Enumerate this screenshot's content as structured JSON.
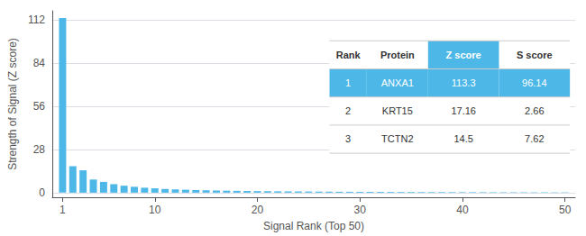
{
  "chart_data": {
    "type": "bar",
    "xlabel": "Signal Rank (Top 50)",
    "ylabel": "Strength of Signal (Z score)",
    "x": [
      1,
      2,
      3,
      4,
      5,
      6,
      7,
      8,
      9,
      10,
      11,
      12,
      13,
      14,
      15,
      16,
      17,
      18,
      19,
      20,
      21,
      22,
      23,
      24,
      25,
      26,
      27,
      28,
      29,
      30,
      31,
      32,
      33,
      34,
      35,
      36,
      37,
      38,
      39,
      40,
      41,
      42,
      43,
      44,
      45,
      46,
      47,
      48,
      49,
      50
    ],
    "values": [
      113.3,
      17.16,
      14.5,
      8.5,
      7.0,
      5.5,
      4.5,
      3.8,
      3.2,
      2.8,
      2.4,
      2.1,
      1.9,
      1.7,
      1.55,
      1.4,
      1.28,
      1.18,
      1.08,
      1.0,
      0.93,
      0.87,
      0.82,
      0.77,
      0.72,
      0.68,
      0.64,
      0.6,
      0.57,
      0.54,
      0.51,
      0.49,
      0.46,
      0.44,
      0.42,
      0.4,
      0.38,
      0.36,
      0.34,
      0.33,
      0.31,
      0.3,
      0.28,
      0.27,
      0.26,
      0.25,
      0.24,
      0.23,
      0.22,
      0.21
    ],
    "color": "#4db8e8",
    "xlim": [
      0,
      51
    ],
    "xticks": [
      1,
      10,
      20,
      30,
      40,
      50
    ],
    "ylim": [
      -3,
      118
    ],
    "yticks": [
      0,
      28,
      56,
      84,
      112
    ],
    "grid": true,
    "table": {
      "headers": [
        "Rank",
        "Protein",
        "Z score",
        "S score"
      ],
      "rows": [
        [
          "1",
          "ANXA1",
          "113.3",
          "96.14"
        ],
        [
          "2",
          "KRT15",
          "17.16",
          "2.66"
        ],
        [
          "3",
          "TCTN2",
          "14.5",
          "7.62"
        ]
      ],
      "highlight_row": 0,
      "highlight_column": 2,
      "highlight_color": "#4db8e8"
    }
  }
}
